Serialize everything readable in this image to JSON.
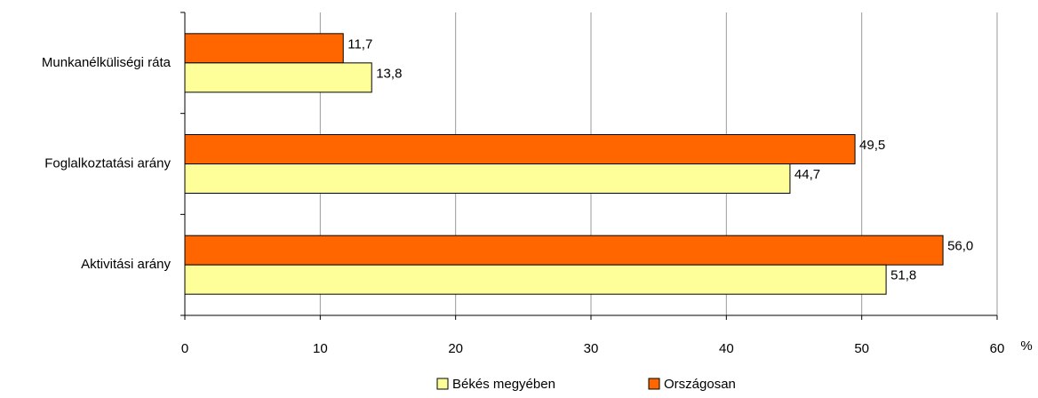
{
  "chart_data": {
    "type": "bar",
    "orientation": "horizontal",
    "categories": [
      "Munkanélküliségi ráta",
      "Foglalkoztatási arány",
      "Aktivitási arány"
    ],
    "series": [
      {
        "name": "Békés megyében",
        "color": "#ffff99",
        "values": [
          13.8,
          44.7,
          51.8
        ],
        "value_labels": [
          "13,8",
          "44,7",
          "51,8"
        ]
      },
      {
        "name": "Országosan",
        "color": "#ff6600",
        "values": [
          11.7,
          49.5,
          56.0
        ],
        "value_labels": [
          "11,7",
          "49,5",
          "56,0"
        ]
      }
    ],
    "xlabel": "%",
    "xlim": [
      0,
      60
    ],
    "xticks": [
      0,
      10,
      20,
      30,
      40,
      50,
      60
    ],
    "grid": true
  }
}
